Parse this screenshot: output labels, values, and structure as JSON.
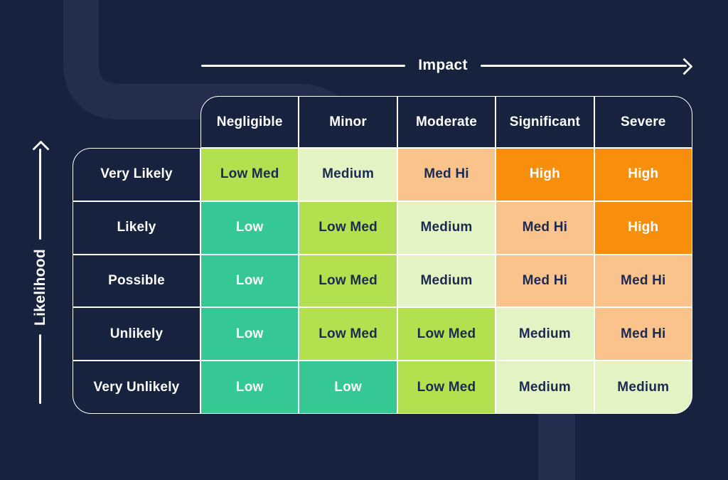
{
  "colors": {
    "background": "#17223F",
    "decoration_band": "#232E4F",
    "grid_border": "#FFFFFF",
    "axis": "#FFFFFF",
    "dark_text": "#1B2A50",
    "light_text": "#FFFFFF"
  },
  "chart_data": {
    "type": "heatmap",
    "x_axis_label": "Impact",
    "y_axis_label": "Likelihood",
    "columns": [
      "Negligible",
      "Minor",
      "Moderate",
      "Significant",
      "Severe"
    ],
    "rows": [
      "Very Likely",
      "Likely",
      "Possible",
      "Unlikely",
      "Very Unlikely"
    ],
    "cells": [
      [
        "Low Med",
        "Medium",
        "Med Hi",
        "High",
        "High"
      ],
      [
        "Low",
        "Low Med",
        "Medium",
        "Med Hi",
        "High"
      ],
      [
        "Low",
        "Low Med",
        "Medium",
        "Med Hi",
        "Med Hi"
      ],
      [
        "Low",
        "Low Med",
        "Low Med",
        "Medium",
        "Med Hi"
      ],
      [
        "Low",
        "Low",
        "Low Med",
        "Medium",
        "Medium"
      ]
    ],
    "levels": {
      "Low": {
        "bg": "#36C894",
        "text": "#FFFFFF"
      },
      "Low Med": {
        "bg": "#B2E04E",
        "text": "#1B2A50"
      },
      "Medium": {
        "bg": "#E4F3C4",
        "text": "#1B2A50"
      },
      "Med Hi": {
        "bg": "#FAC38C",
        "text": "#1B2A50"
      },
      "High": {
        "bg": "#F78E0C",
        "text": "#FFFFFF"
      }
    },
    "legend_position": "none",
    "grid": true
  }
}
